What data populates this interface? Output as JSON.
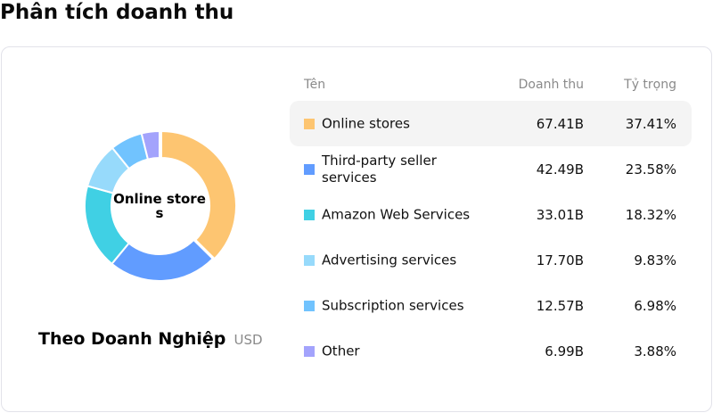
{
  "page": {
    "title": "Phân tích doanh thu"
  },
  "card": {
    "center_label": "Online stores",
    "subtitle": "Theo Doanh Nghiệp",
    "unit": "USD"
  },
  "table": {
    "headers": {
      "name": "Tên",
      "revenue": "Doanh thu",
      "share": "Tỷ trọng"
    },
    "rows": [
      {
        "name": "Online stores",
        "revenue": "67.41B",
        "share": "37.41%",
        "color": "#FDC571",
        "active": true
      },
      {
        "name": "Third-party seller services",
        "revenue": "42.49B",
        "share": "23.58%",
        "color": "#619CFF",
        "active": false
      },
      {
        "name": "Amazon Web Services",
        "revenue": "33.01B",
        "share": "18.32%",
        "color": "#40D0E4",
        "active": false
      },
      {
        "name": "Advertising services",
        "revenue": "17.70B",
        "share": "9.83%",
        "color": "#97DAFB",
        "active": false
      },
      {
        "name": "Subscription services",
        "revenue": "12.57B",
        "share": "6.98%",
        "color": "#71C3FE",
        "active": false
      },
      {
        "name": "Other",
        "revenue": "6.99B",
        "share": "3.88%",
        "color": "#A3A3FC",
        "active": false
      }
    ]
  },
  "chart_data": {
    "type": "pie",
    "style": "donut",
    "title": "Phân tích doanh thu",
    "subtitle": "Theo Doanh Nghiệp",
    "unit": "USD",
    "center_label": "Online stores",
    "categories": [
      "Online stores",
      "Third-party seller services",
      "Amazon Web Services",
      "Advertising services",
      "Subscription services",
      "Other"
    ],
    "values": [
      67.41,
      42.49,
      33.01,
      17.7,
      12.57,
      6.99
    ],
    "value_labels": [
      "67.41B",
      "42.49B",
      "33.01B",
      "17.70B",
      "12.57B",
      "6.99B"
    ],
    "shares": [
      37.41,
      23.58,
      18.32,
      9.83,
      6.98,
      3.88
    ],
    "colors": [
      "#FDC571",
      "#619CFF",
      "#40D0E4",
      "#97DAFB",
      "#71C3FE",
      "#A3A3FC"
    ],
    "highlighted": "Online stores",
    "legend_position": "right (table)"
  }
}
